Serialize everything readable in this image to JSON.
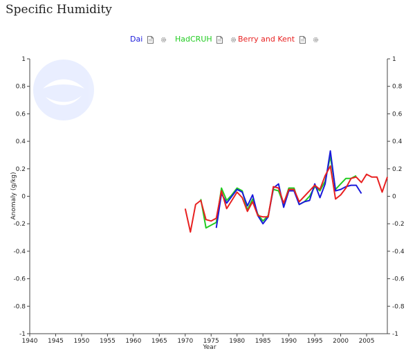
{
  "page": {
    "title": "Specific Humidity"
  },
  "legend": {
    "items": [
      {
        "label": "Dai",
        "color": "#1a1adb"
      },
      {
        "label": "HadCRUH",
        "color": "#22cc22"
      },
      {
        "label": "Berry and Kent",
        "color": "#e82020"
      }
    ],
    "icons": [
      "document-icon",
      "gear-icon"
    ]
  },
  "chart_data": {
    "type": "line",
    "title": "Specific Humidity",
    "xlabel": "Year",
    "ylabel": "Anomaly (g/kg)",
    "xlim": [
      1940,
      2009
    ],
    "ylim": [
      -1,
      1
    ],
    "xticks": [
      1940,
      1945,
      1950,
      1955,
      1960,
      1965,
      1970,
      1975,
      1980,
      1985,
      1990,
      1995,
      2000,
      2005
    ],
    "yticks": [
      -1,
      -0.8,
      -0.6,
      -0.4,
      -0.2,
      0,
      0.2,
      0.4,
      0.6,
      0.8,
      1
    ],
    "ytick_labels": [
      "-1",
      "-0.8",
      "-0.6",
      "-0.4",
      "-0.2",
      "0",
      "0.2",
      "0.4",
      "0.6",
      "0.8",
      "1"
    ],
    "grid": false,
    "legend_position": "top",
    "series": [
      {
        "name": "HadCRUH",
        "color": "#22cc22",
        "x": [
          1973,
          1974,
          1975,
          1976,
          1977,
          1978,
          1979,
          1980,
          1981,
          1982,
          1983,
          1984,
          1985,
          1986,
          1987,
          1988,
          1989,
          1990,
          1991,
          1992,
          1993,
          1994,
          1995,
          1996,
          1997,
          1998,
          1999,
          2000,
          2001,
          2002,
          2003
        ],
        "y": [
          -0.02,
          -0.23,
          -0.21,
          -0.19,
          0.06,
          -0.03,
          0.01,
          0.06,
          0.04,
          -0.1,
          -0.02,
          -0.13,
          -0.18,
          -0.14,
          0.05,
          0.04,
          -0.06,
          0.06,
          0.06,
          -0.06,
          -0.04,
          0.0,
          0.07,
          0.04,
          0.11,
          0.29,
          0.05,
          0.09,
          0.13,
          0.13,
          0.15
        ]
      },
      {
        "name": "Dai",
        "color": "#1a1adb",
        "x": [
          1976,
          1977,
          1978,
          1979,
          1980,
          1981,
          1982,
          1983,
          1984,
          1985,
          1986,
          1987,
          1988,
          1989,
          1990,
          1991,
          1992,
          1993,
          1994,
          1995,
          1996,
          1997,
          1998,
          1999,
          2000,
          2001,
          2002,
          2003,
          2004
        ],
        "y": [
          -0.23,
          0.02,
          -0.05,
          0.0,
          0.05,
          0.03,
          -0.07,
          0.01,
          -0.14,
          -0.2,
          -0.15,
          0.06,
          0.09,
          -0.08,
          0.04,
          0.04,
          -0.06,
          -0.04,
          -0.03,
          0.09,
          -0.01,
          0.09,
          0.33,
          0.04,
          0.05,
          0.07,
          0.08,
          0.08,
          0.02
        ]
      },
      {
        "name": "Berry and Kent",
        "color": "#e82020",
        "x": [
          1970,
          1971,
          1972,
          1973,
          1974,
          1975,
          1976,
          1977,
          1978,
          1979,
          1980,
          1981,
          1982,
          1983,
          1984,
          1985,
          1986,
          1987,
          1988,
          1989,
          1990,
          1991,
          1992,
          1993,
          1994,
          1995,
          1996,
          1997,
          1998,
          1999,
          2000,
          2001,
          2002,
          2003,
          2004,
          2005,
          2006,
          2007,
          2008,
          2009
        ],
        "y": [
          -0.09,
          -0.26,
          -0.06,
          -0.03,
          -0.17,
          -0.18,
          -0.16,
          0.04,
          -0.09,
          -0.03,
          0.03,
          -0.01,
          -0.11,
          -0.04,
          -0.14,
          -0.15,
          -0.15,
          0.07,
          0.06,
          -0.05,
          0.05,
          0.05,
          -0.04,
          0.0,
          0.04,
          0.08,
          0.05,
          0.15,
          0.22,
          -0.02,
          0.01,
          0.06,
          0.13,
          0.14,
          0.1,
          0.16,
          0.14,
          0.14,
          0.03,
          0.14
        ]
      }
    ]
  }
}
